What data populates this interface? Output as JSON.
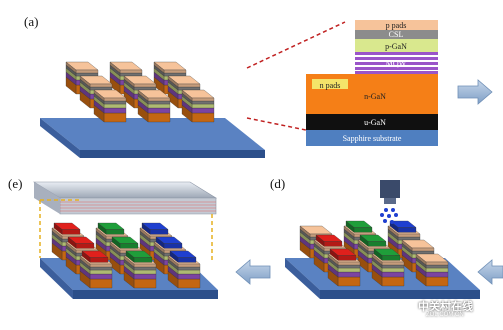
{
  "panels": [
    {
      "id": "a",
      "label": "(a)"
    },
    {
      "id": "d",
      "label": "(d)"
    },
    {
      "id": "e",
      "label": "(e)"
    }
  ],
  "layer_stack": {
    "layers": [
      {
        "name": "p pads",
        "color": "#f6c39a"
      },
      {
        "name": "CSL",
        "color": "#8c8c8c"
      },
      {
        "name": "p-GaN",
        "color": "#d9e88e"
      },
      {
        "name": "MQW",
        "color": "#9a55c9"
      },
      {
        "name": "n pads",
        "color": "#f4e46a"
      },
      {
        "name": "n-GaN",
        "color": "#f57f17"
      },
      {
        "name": "u-GaN",
        "color": "#101010"
      },
      {
        "name": "Sapphire substrate",
        "color": "#4f7fc0"
      }
    ]
  },
  "colors": {
    "red_subpixel": "#e0201c",
    "green_subpixel": "#1f9e3a",
    "blue_subpixel": "#1f3fd0",
    "arrow_blue": "#9fb8d8",
    "guide_dash": "#e6b020",
    "zoom_line": "#c02020"
  },
  "icons": [
    "inkjet-printhead-icon",
    "right-arrow-icon",
    "left-arrow-icon"
  ],
  "watermark": {
    "text": "中关村在线",
    "sub": "ZOL.COM.CN"
  }
}
